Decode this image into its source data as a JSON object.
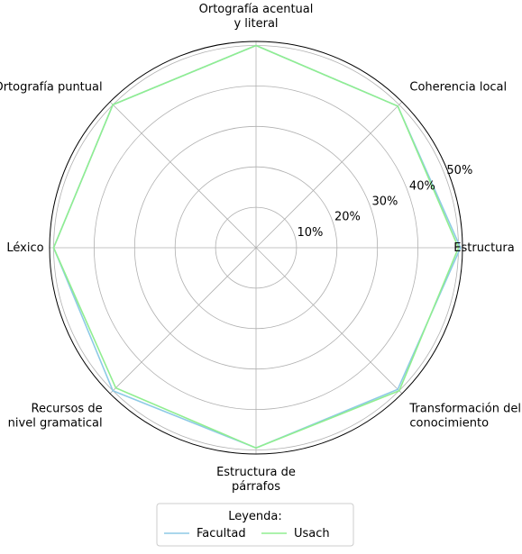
{
  "chart_data": {
    "type": "radar",
    "categories": [
      [
        "Estructura"
      ],
      [
        "Coherencia local"
      ],
      [
        "Ortografía acentual",
        "y literal"
      ],
      [
        "Ortografía puntual"
      ],
      [
        "Léxico"
      ],
      [
        "Recursos de",
        "nivel gramatical"
      ],
      [
        "Estructura de",
        "párrafos"
      ],
      [
        "Transformación del",
        "conocimiento"
      ]
    ],
    "radial_ticks": [
      "10%",
      "20%",
      "30%",
      "40%",
      "50%"
    ],
    "tick_values": [
      10,
      20,
      30,
      40,
      50
    ],
    "rmax": 51,
    "grid": true,
    "series": [
      {
        "name": "Facultad",
        "color": "#8ecae6",
        "values": [
          50.5,
          49.5,
          50.0,
          50.0,
          50.0,
          50.0,
          49.5,
          49.5
        ]
      },
      {
        "name": "Usach",
        "color": "#90ee90",
        "values": [
          50.0,
          49.5,
          50.0,
          50.0,
          50.0,
          49.0,
          49.5,
          50.0
        ]
      }
    ],
    "legend": {
      "title": "Leyenda:",
      "placement": "bottom-center"
    }
  }
}
